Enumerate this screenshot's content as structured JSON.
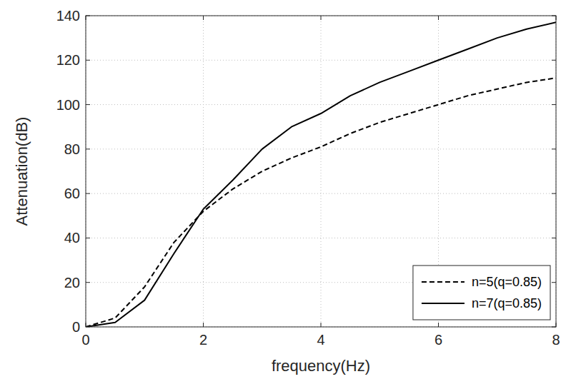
{
  "chart_data": {
    "type": "line",
    "x_label": "frequency(Hz)",
    "y_label": "Attenuation(dB)",
    "x": [
      0,
      0.5,
      1,
      1.5,
      2,
      2.5,
      3,
      3.5,
      4,
      4.5,
      5,
      5.5,
      6,
      6.5,
      7,
      7.5,
      8
    ],
    "series": [
      {
        "name": "n=5(q=0.85)",
        "color": "#000000",
        "line_style": "dashed",
        "values": [
          0,
          4,
          18,
          38,
          52,
          62,
          70,
          76,
          81,
          87,
          92,
          96,
          100,
          104,
          107,
          110,
          112
        ]
      },
      {
        "name": "n=7(q=0.85)",
        "color": "#000000",
        "line_style": "solid",
        "values": [
          0,
          2,
          12,
          33,
          53,
          66,
          80,
          90,
          96,
          104,
          110,
          115,
          120,
          125,
          130,
          134,
          137
        ]
      }
    ],
    "xlim": [
      0,
      8
    ],
    "xticks": [
      0,
      2,
      4,
      6,
      8
    ],
    "ylim": [
      0,
      140
    ],
    "yticks": [
      0,
      20,
      40,
      60,
      80,
      100,
      120,
      140
    ],
    "grid": true,
    "legend": "lower right"
  }
}
